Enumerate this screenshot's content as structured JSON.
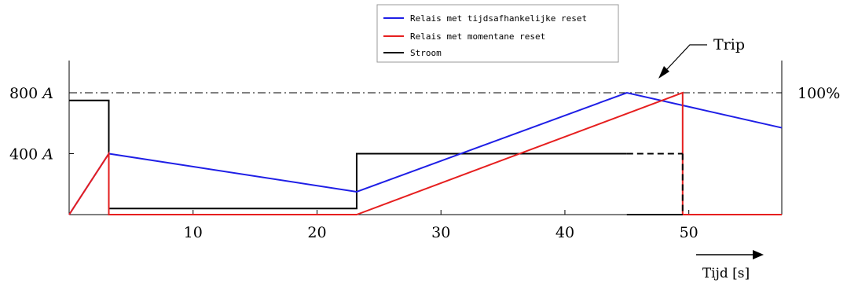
{
  "chart_data": {
    "type": "line",
    "xlabel": "Tijd [s]",
    "xlim": [
      0,
      57.5
    ],
    "ylim": [
      0,
      1000
    ],
    "x_ticks": [
      10,
      20,
      30,
      40,
      50
    ],
    "y_ticks": [
      {
        "value": 400,
        "label": "400 A"
      },
      {
        "value": 800,
        "label": "800 A"
      }
    ],
    "right_label": {
      "value": 800,
      "label": "100%"
    },
    "threshold_line": 800,
    "annotation": "Trip",
    "legend": {
      "placement": "top-center",
      "entries": [
        {
          "name": "Relais met tijdsafhankelijke reset",
          "color": "#1f1fe6"
        },
        {
          "name": "Relais met momentane reset",
          "color": "#e61f1f"
        },
        {
          "name": "Stroom",
          "color": "#000000"
        }
      ]
    },
    "series": [
      {
        "name": "Stroom",
        "color": "#000000",
        "points": [
          [
            0,
            750
          ],
          [
            3.2,
            750
          ],
          [
            3.2,
            40
          ],
          [
            23.2,
            40
          ],
          [
            23.2,
            400
          ],
          [
            45,
            400
          ],
          [
            45,
            0
          ],
          [
            49.5,
            0
          ],
          [
            49.5,
            400
          ]
        ],
        "dashed_segments": [
          [
            [
              45,
              400
            ],
            [
              49.5,
              400
            ]
          ],
          [
            [
              49.5,
              400
            ],
            [
              49.5,
              0
            ]
          ]
        ]
      },
      {
        "name": "Relais met tijdsafhankelijke reset",
        "color": "#1f1fe6",
        "points": [
          [
            0,
            0
          ],
          [
            3.2,
            400
          ],
          [
            23.2,
            150
          ],
          [
            45,
            800
          ],
          [
            57.5,
            570
          ]
        ]
      },
      {
        "name": "Relais met momentane reset",
        "color": "#e61f1f",
        "points": [
          [
            0,
            0
          ],
          [
            3.2,
            400
          ],
          [
            3.2,
            0
          ],
          [
            23.2,
            0
          ],
          [
            49.5,
            800
          ],
          [
            49.5,
            0
          ],
          [
            57.5,
            0
          ]
        ]
      }
    ]
  }
}
